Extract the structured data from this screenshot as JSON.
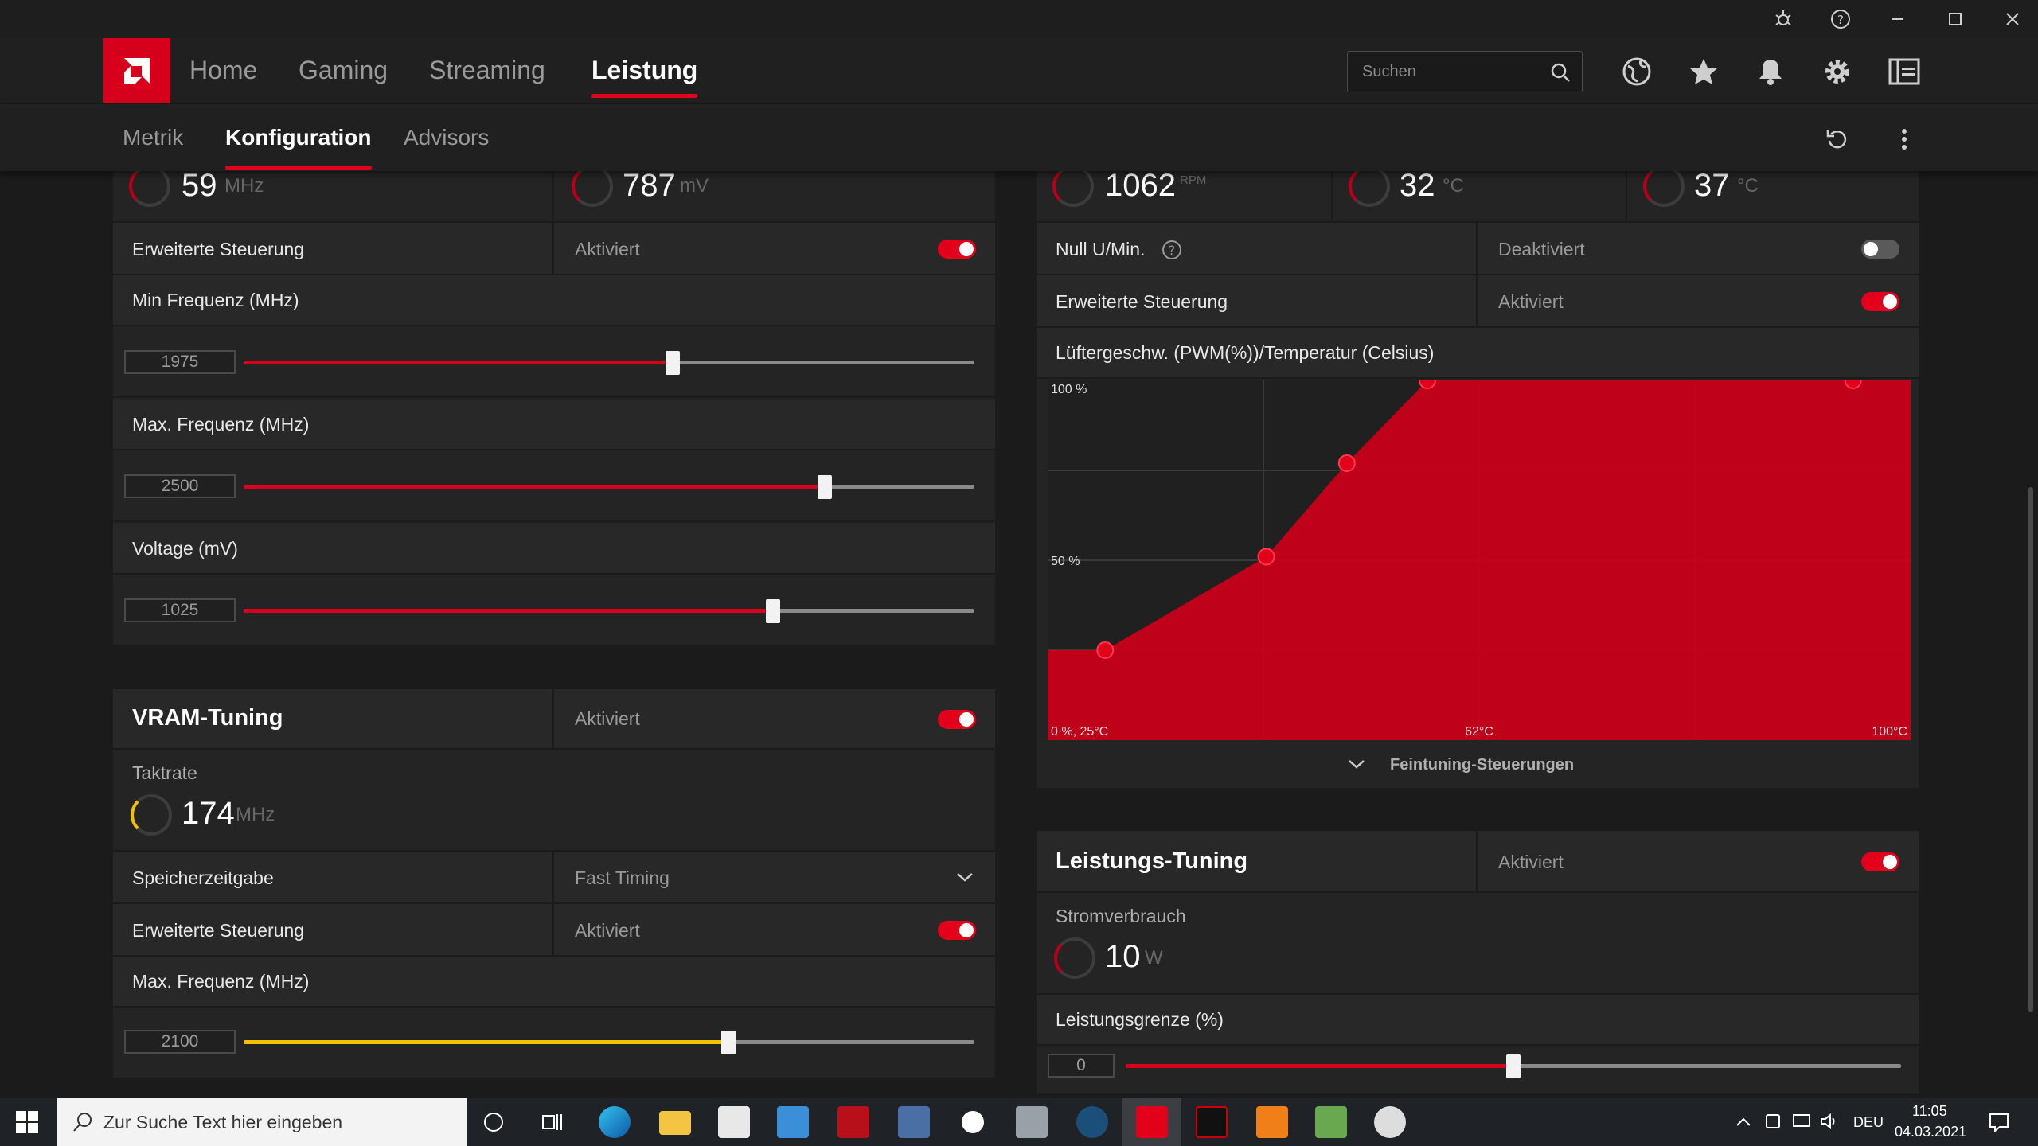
{
  "nav": {
    "tabs": [
      "Home",
      "Gaming",
      "Streaming",
      "Leistung"
    ],
    "active": "Leistung",
    "search_placeholder": "Suchen"
  },
  "subnav": {
    "tabs": [
      "Metrik",
      "Konfiguration",
      "Advisors"
    ],
    "active": "Konfiguration"
  },
  "gpu": {
    "clock_value": "59",
    "clock_unit": "MHz",
    "voltage_value": "787",
    "voltage_unit": "mV",
    "advanced_label": "Erweiterte Steuerung",
    "advanced_value": "Aktiviert",
    "min_freq_label": "Min Frequenz (MHz)",
    "min_freq_value": "1975",
    "min_freq_fraction": 0.587,
    "max_freq_label": "Max. Frequenz (MHz)",
    "max_freq_value": "2500",
    "max_freq_fraction": 0.795,
    "voltage_label": "Voltage (mV)",
    "voltage_slider_value": "1025",
    "voltage_fraction": 0.724
  },
  "vram": {
    "title": "VRAM-Tuning",
    "status": "Aktiviert",
    "clock_label": "Taktrate",
    "clock_value": "174",
    "clock_unit": "MHz",
    "timing_label": "Speicherzeitgabe",
    "timing_value": "Fast Timing",
    "advanced_label": "Erweiterte Steuerung",
    "advanced_value": "Aktiviert",
    "max_freq_label": "Max. Frequenz (MHz)",
    "max_freq_value": "2100",
    "max_freq_fraction": 0.663
  },
  "fan": {
    "rpm_value": "1062",
    "rpm_unit": "RPM",
    "temp1_value": "32",
    "temp1_unit": "°C",
    "temp2_value": "37",
    "temp2_unit": "°C",
    "zero_rpm_label": "Null U/Min.",
    "zero_rpm_value": "Deaktiviert",
    "advanced_label": "Erweiterte Steuerung",
    "advanced_value": "Aktiviert",
    "curve_title": "Lüftergeschw. (PWM(%))/Temperatur (Celsius)",
    "fine_tune_label": "Feintuning-Steuerungen"
  },
  "chart_data": {
    "type": "area",
    "title": "Lüftergeschw. (PWM(%))/Temperatur (Celsius)",
    "x_tick_labels": [
      "0 %, 25°C",
      "62°C",
      "100°C"
    ],
    "y_tick_labels": [
      "100 %",
      "50 %"
    ],
    "xlim": [
      25,
      100
    ],
    "ylim": [
      0,
      100
    ],
    "series": [
      {
        "x": [
          30,
          44,
          51,
          58,
          95
        ],
        "y": [
          25,
          51,
          77,
          100,
          100
        ]
      }
    ],
    "color": "#c8001a"
  },
  "power": {
    "title": "Leistungs-Tuning",
    "status": "Aktiviert",
    "consumption_label": "Stromverbrauch",
    "consumption_value": "10",
    "consumption_unit": "W",
    "limit_label": "Leistungsgrenze (%)",
    "limit_value": "0",
    "limit_fraction": 0.5
  },
  "taskbar": {
    "search_placeholder": "Zur Suche Text hier eingeben",
    "language": "DEU",
    "time": "11:05",
    "date": "04.03.2021"
  },
  "colors": {
    "accent": "#e2001a",
    "vram_accent": "#f2c200"
  }
}
